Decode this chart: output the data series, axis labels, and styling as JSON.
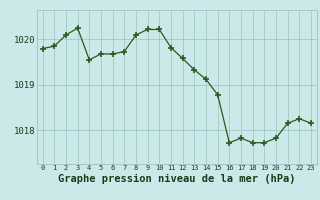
{
  "x": [
    0,
    1,
    2,
    3,
    4,
    5,
    6,
    7,
    8,
    9,
    10,
    11,
    12,
    13,
    14,
    15,
    16,
    17,
    18,
    19,
    20,
    21,
    22,
    23
  ],
  "y": [
    1019.8,
    1019.85,
    1020.1,
    1020.25,
    1019.55,
    1019.68,
    1019.68,
    1019.73,
    1020.1,
    1020.22,
    1020.22,
    1019.82,
    1019.58,
    1019.33,
    1019.12,
    1018.78,
    1017.72,
    1017.82,
    1017.72,
    1017.72,
    1017.82,
    1018.15,
    1018.25,
    1018.15
  ],
  "line_color": "#2d5a1e",
  "marker_color": "#2d5a1e",
  "bg_color": "#cce9ea",
  "grid_color": "#a0c8c8",
  "xlabel": "Graphe pression niveau de la mer (hPa)",
  "xlabel_fontsize": 7.5,
  "ytick_labels": [
    "1018",
    "1019",
    "1020"
  ],
  "ytick_values": [
    1018,
    1019,
    1020
  ],
  "ylim": [
    1017.25,
    1020.65
  ],
  "xlim": [
    -0.5,
    23.5
  ],
  "xtick_values": [
    0,
    1,
    2,
    3,
    4,
    5,
    6,
    7,
    8,
    9,
    10,
    11,
    12,
    13,
    14,
    15,
    16,
    17,
    18,
    19,
    20,
    21,
    22,
    23
  ],
  "xtick_fontsize": 5.0,
  "ytick_fontsize": 6.5
}
